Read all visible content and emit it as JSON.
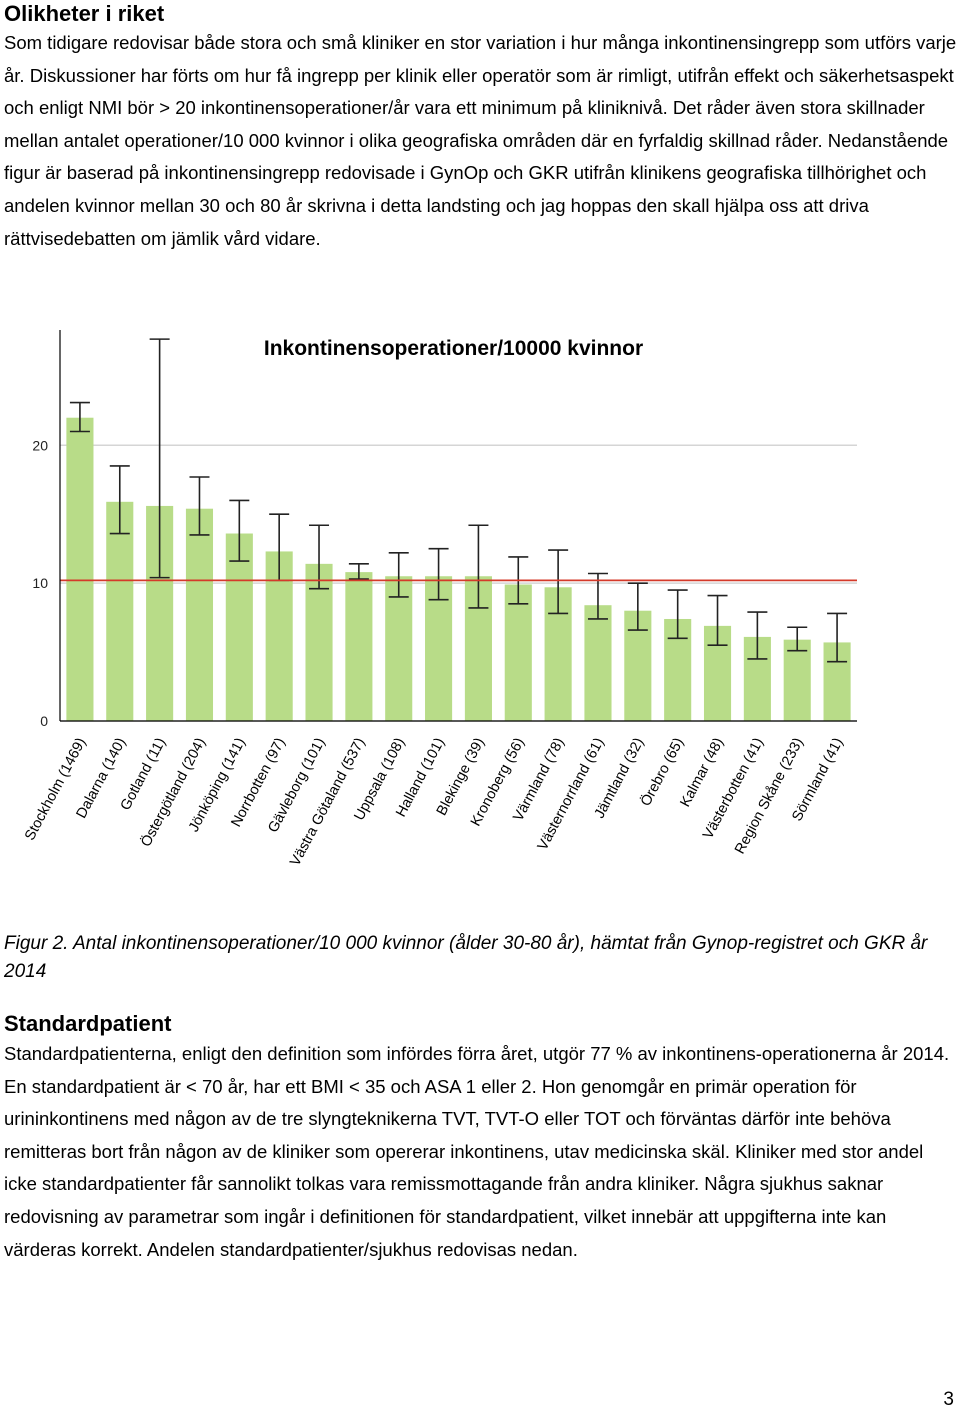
{
  "section1": {
    "heading": "Olikheter i riket",
    "paragraph": "Som tidigare redovisar både stora och små kliniker en stor variation i hur många inkontinensingrepp som utförs varje år. Diskussioner har förts om hur få ingrepp per klinik eller operatör som är rimligt, utifrån effekt och säkerhetsaspekt och enligt NMI bör > 20 inkontinensoperationer/år vara ett minimum på kliniknivå. Det råder även stora skillnader mellan antalet operationer/10 000 kvinnor i olika geografiska områden där en fyrfaldig skillnad råder. Nedanstående figur är baserad på inkontinensingrepp redovisade i GynOp och GKR utifrån klinikens geografiska tillhörighet och andelen kvinnor mellan 30 och 80 år skrivna i detta landsting och jag hoppas den skall hjälpa oss att driva rättvisedebatten om jämlik vård vidare."
  },
  "figure": {
    "caption": "Figur 2. Antal inkontinensoperationer/10 000 kvinnor (ålder 30-80 år), hämtat från Gynop-registret och GKR år 2014"
  },
  "chart_data": {
    "type": "bar",
    "title": "Inkontinensoperationer/10000 kvinnor",
    "categories": [
      "Stockholm (1469)",
      "Dalarna (140)",
      "Gotland (11)",
      "Östergötland (204)",
      "Jönköping (141)",
      "Norrbotten (97)",
      "Gävleborg (101)",
      "Västra Götaland (537)",
      "Uppsala (108)",
      "Halland (101)",
      "Blekinge (39)",
      "Kronoberg (56)",
      "Värmland (78)",
      "Västernorrland (61)",
      "Jämtland (32)",
      "Örebro (65)",
      "Kalmar (48)",
      "Västerbotten (41)",
      "Region Skåne (233)",
      "Sörmland (41)"
    ],
    "values": [
      22.0,
      15.9,
      15.6,
      15.4,
      13.6,
      12.3,
      11.4,
      10.8,
      10.5,
      10.5,
      10.5,
      9.9,
      9.7,
      8.4,
      8.0,
      7.4,
      6.9,
      6.1,
      5.9,
      5.7
    ],
    "error_low": [
      21.0,
      13.6,
      10.4,
      13.5,
      11.6,
      10.2,
      9.6,
      10.3,
      9.0,
      8.8,
      8.2,
      8.5,
      7.8,
      7.4,
      6.6,
      6.0,
      5.5,
      4.5,
      5.1,
      4.3
    ],
    "error_high": [
      23.1,
      18.5,
      27.7,
      17.7,
      16.0,
      15.0,
      14.2,
      11.4,
      12.2,
      12.5,
      14.2,
      11.9,
      12.4,
      10.7,
      10.0,
      9.5,
      9.1,
      7.9,
      6.8,
      7.8
    ],
    "reference_line": 10.2,
    "ylim": [
      0,
      28
    ],
    "yticks": [
      0,
      10,
      20
    ],
    "ytick_labels": [
      "0",
      "10",
      "20"
    ],
    "grid": true,
    "colors": {
      "bar": "#b8dc88",
      "error": "#222222",
      "reference": "#d43a2a",
      "grid": "#d5d5d5",
      "axis": "#000000"
    }
  },
  "section2": {
    "heading": "Standardpatient",
    "paragraph": "Standardpatienterna, enligt den definition som infördes förra året, utgör 77 % av inkontinens-operationerna år 2014. En standardpatient är < 70 år, har ett BMI < 35 och ASA 1 eller 2. Hon genomgår en primär operation för urininkontinens med någon av de tre slyngteknikerna TVT, TVT-O eller TOT och förväntas därför inte behöva remitteras bort från någon av de kliniker som opererar inkontinens, utav medicinska skäl. Kliniker med stor andel icke standardpatienter får sannolikt tolkas vara remissmottagande från andra kliniker. Några sjukhus saknar redovisning av parametrar som ingår i definitionen för standardpatient, vilket innebär att uppgifterna inte kan värderas korrekt. Andelen standardpatienter/sjukhus redovisas nedan."
  },
  "page_number": "3"
}
